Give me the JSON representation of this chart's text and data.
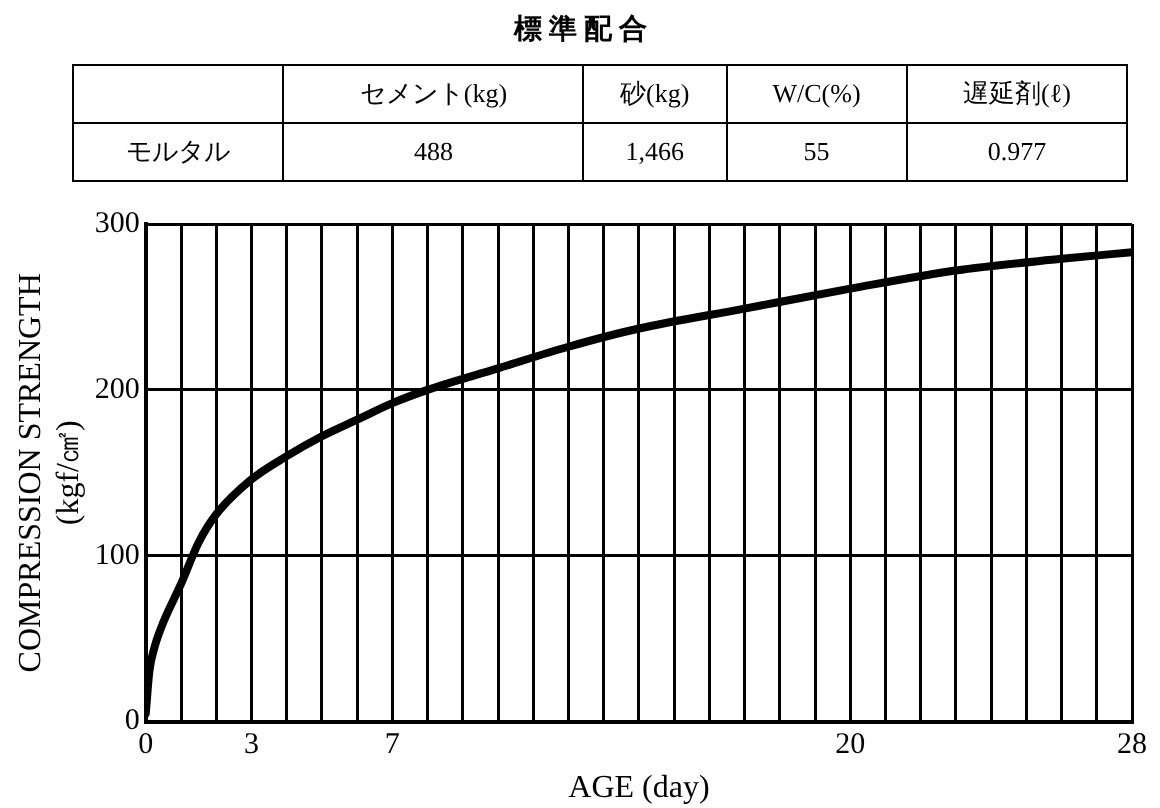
{
  "chart_data": {
    "type": "line",
    "title": "標 準 配 合",
    "annotations": [
      "セメント(kg)",
      "砂(kg)",
      "W/C(%)",
      "遅延剤(ℓ)",
      "モルタル",
      "488",
      "1,466",
      "55",
      "0.977"
    ],
    "xlabel": "AGE (day)",
    "ylabel": "COMPRESSION STRENGTH\n(kgf/㎠)",
    "x": [
      0,
      0.1,
      0.25,
      0.5,
      1,
      1.5,
      2,
      3,
      4,
      5,
      6,
      7,
      8,
      10,
      12,
      14,
      17,
      20,
      23,
      26,
      28
    ],
    "series": [
      {
        "color": "#000000",
        "values": [
          5,
          30,
          45,
          60,
          83,
          108,
          125,
          146,
          160,
          172,
          182,
          192,
          200,
          213,
          226,
          237,
          249,
          261,
          272,
          279,
          283
        ]
      }
    ],
    "xlim": [
      0,
      28
    ],
    "xticks": [
      0,
      {
        "value": 1,
        "label": null
      },
      {
        "value": 2,
        "label": null
      },
      3,
      {
        "value": 4,
        "label": null
      },
      {
        "value": 5,
        "label": null
      },
      {
        "value": 6,
        "label": null
      },
      7,
      {
        "value": 8,
        "label": null
      },
      {
        "value": 9,
        "label": null
      },
      {
        "value": 10,
        "label": null
      },
      {
        "value": 11,
        "label": null
      },
      {
        "value": 12,
        "label": null
      },
      {
        "value": 13,
        "label": null
      },
      {
        "value": 14,
        "label": null
      },
      {
        "value": 15,
        "label": null
      },
      {
        "value": 16,
        "label": null
      },
      {
        "value": 17,
        "label": null
      },
      {
        "value": 18,
        "label": null
      },
      {
        "value": 19,
        "label": null
      },
      20,
      {
        "value": 21,
        "label": null
      },
      {
        "value": 22,
        "label": null
      },
      {
        "value": 23,
        "label": null
      },
      {
        "value": 24,
        "label": null
      },
      {
        "value": 25,
        "label": null
      },
      {
        "value": 26,
        "label": null
      },
      {
        "value": 27,
        "label": null
      },
      28
    ],
    "ylim": [
      0,
      300
    ],
    "yticks": [
      0,
      100,
      200,
      300
    ],
    "grid": true,
    "legend": false,
    "marker": "none",
    "line_style": "solid"
  }
}
